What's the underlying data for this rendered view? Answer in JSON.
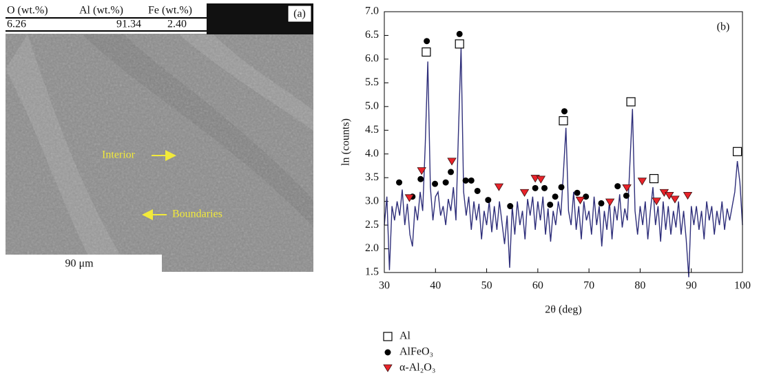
{
  "micrograph": {
    "label": "(a)",
    "table": {
      "header": [
        "O (wt.%)",
        "Al (wt.%)",
        "Fe (wt.%)"
      ],
      "rows": [
        [
          "6.26",
          "91.34",
          "2.40"
        ]
      ]
    },
    "annotations": [
      "Interior",
      "Boundaries"
    ],
    "scale_bar": "90 μm"
  },
  "chart_data": {
    "type": "line",
    "label": "(b)",
    "xlabel": "2θ (deg)",
    "ylabel": "ln (counts)",
    "xlim": [
      30,
      100
    ],
    "xticks": [
      30,
      40,
      50,
      60,
      70,
      80,
      90,
      100
    ],
    "ylim": [
      1.5,
      7.0
    ],
    "yticks": [
      1.5,
      {
        "value": 2,
        "label": "2.0"
      },
      2.5,
      {
        "value": 3,
        "label": "3.0"
      },
      3.5,
      {
        "value": 4,
        "label": "4.0"
      },
      4.5,
      {
        "value": 5,
        "label": "5.0"
      },
      5.5,
      {
        "value": 6,
        "label": "6.0"
      },
      6.5,
      {
        "value": 7,
        "label": "7.0"
      }
    ],
    "series": [
      {
        "type": "line",
        "color": "#2e2e7a",
        "x": [
          30,
          30.5,
          31,
          31.5,
          32,
          32.5,
          33,
          33.5,
          34,
          34.5,
          35,
          35.5,
          36,
          36.5,
          37,
          37.5,
          38,
          38.5,
          39,
          39.5,
          40,
          40.5,
          41,
          41.5,
          42,
          42.5,
          43,
          43.5,
          44,
          44.5,
          45,
          45.5,
          46,
          46.5,
          47,
          47.5,
          48,
          48.5,
          49,
          49.5,
          50,
          50.5,
          51,
          51.5,
          52,
          52.5,
          53,
          53.5,
          54,
          54.5,
          55,
          55.5,
          56,
          56.5,
          57,
          57.5,
          58,
          58.5,
          59,
          59.5,
          60,
          60.5,
          61,
          61.5,
          62,
          62.5,
          63,
          63.5,
          64,
          64.5,
          65,
          65.5,
          66,
          66.5,
          67,
          67.5,
          68,
          68.5,
          69,
          69.5,
          70,
          70.5,
          71,
          71.5,
          72,
          72.5,
          73,
          73.5,
          74,
          74.5,
          75,
          75.5,
          76,
          76.5,
          77,
          77.5,
          78,
          78.5,
          79,
          79.5,
          80,
          80.5,
          81,
          81.5,
          82,
          82.5,
          83,
          83.5,
          84,
          84.5,
          85,
          85.5,
          86,
          86.5,
          87,
          87.5,
          88,
          88.5,
          89,
          89.5,
          90,
          90.5,
          91,
          91.5,
          92,
          92.5,
          93,
          93.5,
          94,
          94.5,
          95,
          95.5,
          96,
          96.5,
          97,
          97.5,
          98,
          98.5,
          99,
          99.5,
          100
        ],
        "values": [
          2.5,
          3.1,
          1.55,
          2.9,
          2.6,
          3.0,
          2.7,
          3.25,
          2.5,
          2.95,
          2.3,
          2.05,
          2.9,
          2.6,
          3.2,
          2.8,
          4.2,
          5.95,
          3.3,
          2.6,
          3.1,
          3.2,
          2.7,
          2.9,
          2.5,
          3.05,
          2.8,
          3.3,
          2.6,
          4.5,
          6.25,
          3.2,
          2.7,
          3.1,
          2.4,
          3.0,
          2.6,
          2.95,
          2.2,
          2.8,
          2.5,
          3.0,
          2.35,
          2.9,
          2.4,
          3.0,
          2.55,
          2.1,
          2.7,
          1.6,
          2.9,
          2.3,
          3.0,
          2.5,
          2.8,
          2.2,
          3.05,
          2.7,
          3.1,
          2.4,
          3.0,
          2.6,
          3.1,
          2.3,
          2.85,
          2.15,
          2.8,
          2.5,
          3.0,
          2.7,
          3.6,
          4.55,
          2.8,
          2.5,
          3.2,
          2.4,
          2.9,
          2.2,
          3.0,
          2.6,
          2.8,
          2.3,
          3.1,
          2.5,
          2.9,
          2.05,
          2.8,
          2.4,
          3.0,
          2.2,
          2.9,
          2.6,
          3.15,
          2.45,
          2.85,
          2.6,
          3.8,
          4.95,
          2.8,
          2.3,
          2.9,
          2.5,
          3.0,
          2.2,
          2.8,
          3.3,
          2.5,
          2.9,
          2.15,
          3.0,
          2.4,
          2.9,
          2.3,
          2.8,
          2.45,
          3.0,
          2.3,
          2.8,
          2.2,
          1.4,
          2.9,
          2.5,
          2.9,
          2.4,
          2.8,
          2.2,
          3.0,
          2.6,
          2.9,
          2.3,
          2.8,
          2.5,
          3.0,
          2.4,
          2.85,
          2.6,
          2.9,
          3.2,
          3.85,
          3.4,
          2.5
        ]
      },
      {
        "type": "scatter",
        "name": "Al",
        "marker": "square",
        "color": "#000000",
        "x": [
          38.2,
          44.7,
          65.0,
          78.2,
          82.7,
          99.0
        ],
        "values": [
          6.15,
          6.32,
          4.7,
          5.1,
          3.48,
          4.05
        ]
      },
      {
        "type": "scatter",
        "name": "AlFeO₃",
        "marker": "circle",
        "color": "#000000",
        "x": [
          32.9,
          35.5,
          37.1,
          38.3,
          39.9,
          42.0,
          43.0,
          44.7,
          45.9,
          47.0,
          48.2,
          50.3,
          54.6,
          59.5,
          61.3,
          62.4,
          63.4,
          64.6,
          65.2,
          67.7,
          69.4,
          72.4,
          75.6,
          77.3
        ],
        "values": [
          3.4,
          3.1,
          3.47,
          6.38,
          3.37,
          3.4,
          3.62,
          6.53,
          3.44,
          3.44,
          3.22,
          3.03,
          2.9,
          3.28,
          3.28,
          2.93,
          3.1,
          3.3,
          4.9,
          3.18,
          3.1,
          2.96,
          3.32,
          3.12
        ]
      },
      {
        "type": "scatter",
        "name": "α-Al₂O₃",
        "marker": "triangle",
        "color": "#e8232a",
        "x": [
          34.9,
          37.3,
          43.2,
          52.4,
          57.4,
          59.5,
          60.6,
          68.3,
          74.1,
          77.4,
          80.4,
          83.2,
          84.7,
          85.7,
          86.8,
          89.3
        ],
        "values": [
          3.07,
          3.64,
          3.84,
          3.3,
          3.18,
          3.48,
          3.46,
          3.02,
          2.98,
          3.28,
          3.42,
          3.0,
          3.18,
          3.12,
          3.04,
          3.12
        ]
      }
    ]
  }
}
